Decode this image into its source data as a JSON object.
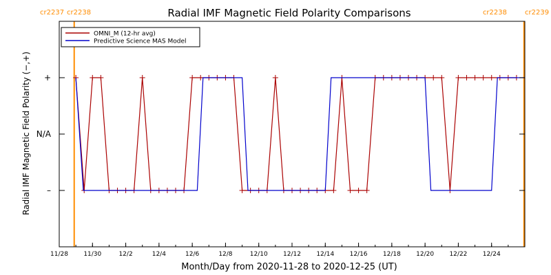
{
  "chart_data": {
    "type": "line",
    "title": "Radial IMF Magnetic Field Polarity Comparisons",
    "xlabel": "Month/Day from 2020-11-28 to 2020-12-25 (UT)",
    "ylabel": "Radial IMF Magnetic Field Polarity (−,+)",
    "x_unit": "days after 2020-11-28 00:00 UT",
    "xlim": [
      0,
      28
    ],
    "ylim": [
      -2,
      2
    ],
    "x_ticks": [
      {
        "x": 0,
        "label": "11/28"
      },
      {
        "x": 2,
        "label": "11/30"
      },
      {
        "x": 4,
        "label": "12/2"
      },
      {
        "x": 6,
        "label": "12/4"
      },
      {
        "x": 8,
        "label": "12/6"
      },
      {
        "x": 10,
        "label": "12/8"
      },
      {
        "x": 12,
        "label": "12/10"
      },
      {
        "x": 14,
        "label": "12/12"
      },
      {
        "x": 16,
        "label": "12/14"
      },
      {
        "x": 18,
        "label": "12/16"
      },
      {
        "x": 20,
        "label": "12/18"
      },
      {
        "x": 22,
        "label": "12/20"
      },
      {
        "x": 24,
        "label": "12/22"
      },
      {
        "x": 26,
        "label": "12/24"
      }
    ],
    "y_ticks": [
      {
        "y": 1,
        "label": "+"
      },
      {
        "y": 0,
        "label": "N/A"
      },
      {
        "y": -1,
        "label": "–"
      }
    ],
    "grid": false,
    "legend_position": "top-left",
    "carrington_markers": [
      {
        "x": 0.9,
        "labels": [
          "cr2237",
          "cr2238"
        ],
        "position": "left"
      },
      {
        "x": 27.95,
        "labels": [
          "cr2238",
          "cr2239"
        ],
        "position": "right"
      }
    ],
    "series": [
      {
        "name": "OMNI_M (12-hr avg)",
        "color": "#aa0000",
        "marker": "+",
        "x": [
          1.0,
          1.5,
          2.0,
          2.5,
          3.0,
          3.5,
          4.0,
          4.5,
          5.0,
          5.5,
          6.0,
          6.5,
          7.0,
          7.5,
          8.0,
          8.5,
          9.0,
          9.5,
          10.0,
          10.5,
          11.0,
          11.5,
          12.0,
          12.5,
          13.0,
          13.5,
          14.0,
          14.5,
          15.0,
          15.5,
          16.0,
          16.5,
          17.0,
          17.5,
          18.0,
          18.5,
          19.0,
          19.5,
          20.0,
          20.5,
          21.0,
          21.5,
          22.0,
          22.5,
          23.0,
          23.5,
          24.0,
          24.5,
          25.0,
          25.5,
          26.0,
          26.5,
          27.0,
          27.5
        ],
        "y": [
          1,
          -1,
          1,
          1,
          -1,
          -1,
          -1,
          -1,
          1,
          -1,
          -1,
          -1,
          -1,
          -1,
          1,
          1,
          1,
          1,
          1,
          1,
          -1,
          -1,
          -1,
          -1,
          1,
          -1,
          -1,
          -1,
          -1,
          -1,
          -1,
          -1,
          1,
          -1,
          -1,
          -1,
          1,
          1,
          1,
          1,
          1,
          1,
          1,
          1,
          1,
          -1,
          1,
          1,
          1,
          1,
          1,
          1,
          1,
          1
        ]
      },
      {
        "name": "Predictive Science MAS Model",
        "color": "#0000cc",
        "x": [
          1.0,
          1.45,
          8.3,
          8.65,
          11.0,
          11.35,
          16.0,
          16.35,
          22.0,
          22.35,
          26.0,
          26.35,
          28.0
        ],
        "y": [
          1,
          -1,
          -1,
          1,
          1,
          -1,
          -1,
          1,
          1,
          -1,
          -1,
          1,
          1
        ]
      }
    ]
  }
}
